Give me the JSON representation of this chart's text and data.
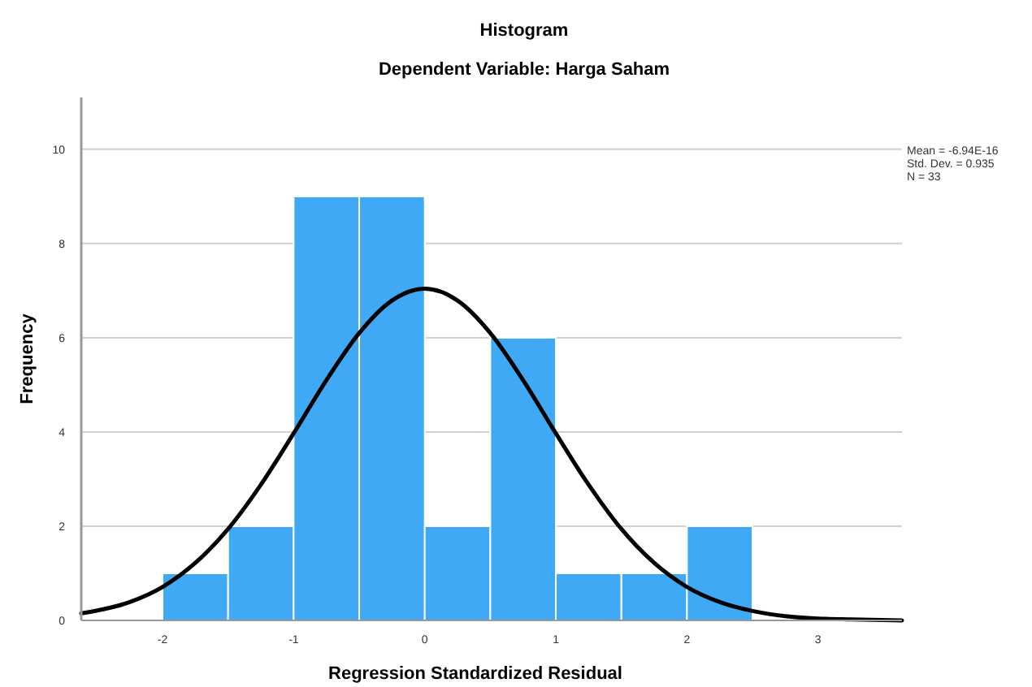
{
  "chart_data": {
    "type": "histogram",
    "title": "Histogram",
    "subtitle": "Dependent Variable: Harga Saham",
    "xlabel": "Regression Standardized Residual",
    "ylabel": "Frequency",
    "bins": [
      -2,
      -1.5,
      -1,
      -0.5,
      0,
      0.5,
      1,
      1.5,
      2,
      2.5
    ],
    "values": [
      1,
      2,
      9,
      9,
      2,
      6,
      1,
      1,
      2
    ],
    "color": "#3fa9f5",
    "series": [
      {
        "type": "line",
        "color": "#000000",
        "x": [
          -2.62,
          -2.25,
          -2,
          -1.75,
          -1.5,
          -1.25,
          -1,
          -0.75,
          -0.5,
          -0.25,
          0,
          0.25,
          0.5,
          0.75,
          1,
          1.25,
          1.5,
          1.75,
          2,
          2.25,
          2.5,
          2.75,
          3,
          3.25,
          3.64
        ],
        "values": [
          0.15,
          0.39,
          0.71,
          1.22,
          1.94,
          2.88,
          3.97,
          5.1,
          6.1,
          6.79,
          7.04,
          6.79,
          6.1,
          5.1,
          3.97,
          2.88,
          1.94,
          1.22,
          0.71,
          0.39,
          0.2,
          0.09,
          0.04,
          0.02,
          0
        ]
      }
    ],
    "xlim": [
      -2.62,
      3.64
    ],
    "ylim": [
      0,
      11.1
    ],
    "xticks": [
      -2,
      -1,
      0,
      1,
      2,
      3
    ],
    "yticks": [
      0,
      2,
      4,
      6,
      8,
      10
    ],
    "grid": "y",
    "annotations": [
      "Mean = -6.94E-16",
      "Std. Dev. = 0.935",
      "N = 33"
    ]
  }
}
